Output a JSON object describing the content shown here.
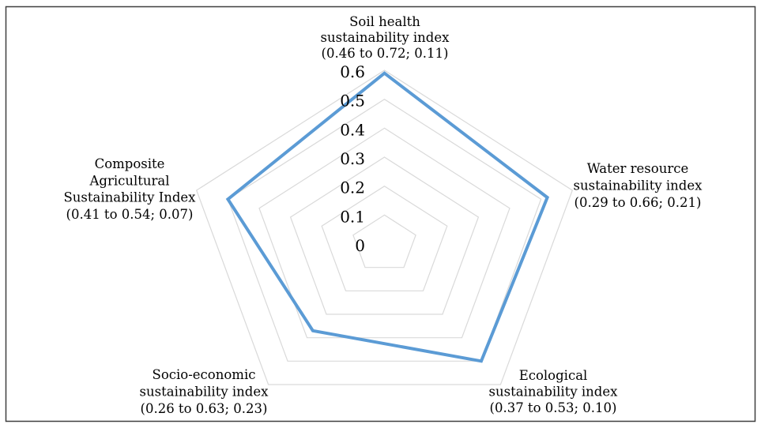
{
  "chart_data": {
    "type": "radar",
    "title": "",
    "legend": false,
    "grid": true,
    "radial_axis": {
      "min": 0,
      "max": 0.6,
      "tick_step": 0.1,
      "tick_labels": [
        "0",
        "0.1",
        "0.2",
        "0.3",
        "0.4",
        "0.5",
        "0.6"
      ]
    },
    "axes": [
      {
        "id": "soil-health",
        "label_lines": [
          "Soil health",
          "sustainability index",
          "(0.46 to 0.72; 0.11)"
        ]
      },
      {
        "id": "water-resource",
        "label_lines": [
          "Water resource",
          "sustainability index",
          "(0.29 to 0.66; 0.21)"
        ]
      },
      {
        "id": "ecological",
        "label_lines": [
          "Ecological",
          "sustainability index",
          "(0.37 to 0.53; 0.10)"
        ]
      },
      {
        "id": "socio-economic",
        "label_lines": [
          "Socio-economic",
          "sustainability index",
          "(0.26 to 0.63; 0.23)"
        ]
      },
      {
        "id": "composite-agricultural",
        "label_lines": [
          "Composite",
          "Agricultural",
          "Sustainability Index",
          "(0.41 to 0.54; 0.07)"
        ]
      }
    ],
    "series": [
      {
        "values": [
          0.59,
          0.52,
          0.5,
          0.37,
          0.5
        ]
      }
    ],
    "colors": {
      "series_line": "#5B9BD5",
      "gridline": "#D9D9D9",
      "text": "#000000",
      "frame_border": "#3F3F3F",
      "background": "#FFFFFF"
    }
  }
}
